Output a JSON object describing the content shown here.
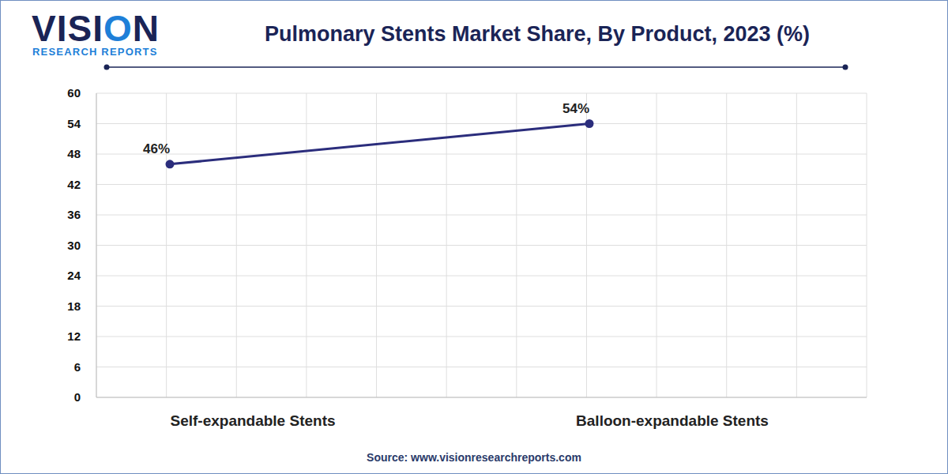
{
  "chart_data": {
    "type": "line",
    "title": "Pulmonary Stents Market Share, By Product, 2023 (%)",
    "logo_text": "VISION",
    "logo_tagline": "RESEARCH REPORTS",
    "source": "Source: www.visionresearchreports.com",
    "categories": [
      "Self-expandable Stents",
      "Balloon-expandable Stents"
    ],
    "values": [
      46,
      54
    ],
    "value_labels": [
      "46%",
      "54%"
    ],
    "color": "#2b2d7c",
    "marker": "circle",
    "ylim": [
      0,
      60
    ],
    "yticks": [
      0,
      6,
      12,
      18,
      24,
      30,
      36,
      42,
      48,
      54,
      60
    ],
    "grid": true,
    "data_labels": true
  }
}
